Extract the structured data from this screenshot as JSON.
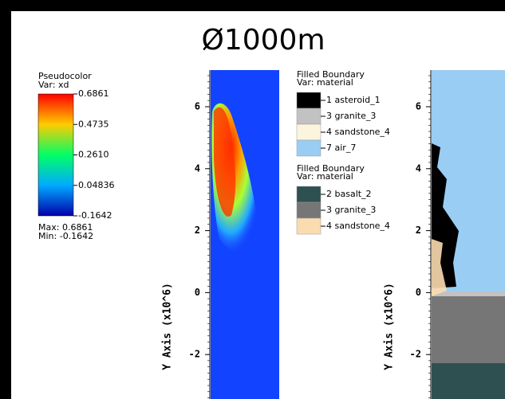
{
  "title": "Ø1000m",
  "pseudocolor_legend": {
    "title": "Pseudocolor",
    "variable": "Var: xd",
    "labels": [
      "0.6861",
      "0.4735",
      "0.2610",
      "0.04836",
      "-0.1642"
    ],
    "max": "Max:  0.6861",
    "min": "Min: -0.1642"
  },
  "plot_left": {
    "yticks": [
      "6",
      "4",
      "2",
      "0",
      "-2"
    ],
    "ylabel": "Y Axis  (x10^6)"
  },
  "plot_right": {
    "yticks": [
      "6",
      "4",
      "2",
      "0",
      "-2"
    ],
    "ylabel": "Y Axis  (x10^6)"
  },
  "material_legend_1": {
    "title": "Filled Boundary",
    "variable": "Var: material",
    "entries": [
      {
        "label": "1 asteroid_1",
        "color": "#000000"
      },
      {
        "label": "3 granite_3",
        "color": "#c2c2c2"
      },
      {
        "label": "4 sandstone_4",
        "color": "#fdf4dd"
      },
      {
        "label": "7 air_7",
        "color": "#9acdf4"
      }
    ]
  },
  "material_legend_2": {
    "title": "Filled Boundary",
    "variable": "Var: material",
    "entries": [
      {
        "label": "2 basalt_2",
        "color": "#2f5050"
      },
      {
        "label": "3 granite_3",
        "color": "#767676"
      },
      {
        "label": "4 sandstone_4",
        "color": "#fbdbb0"
      }
    ]
  }
}
